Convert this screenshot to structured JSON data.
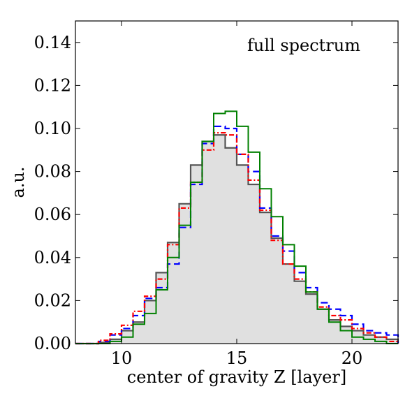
{
  "chart_data": {
    "type": "histogram",
    "title": "",
    "annotation": "full spectrum",
    "xlabel": "center of gravity Z [layer]",
    "ylabel": "a.u.",
    "xlim": [
      8,
      22
    ],
    "ylim": [
      0,
      0.15
    ],
    "xticks": [
      10,
      15,
      20
    ],
    "xtick_labels": [
      "10",
      "15",
      "20"
    ],
    "yticks": [
      0.0,
      0.02,
      0.04,
      0.06,
      0.08,
      0.1,
      0.12,
      0.14
    ],
    "ytick_labels": [
      "0.00",
      "0.02",
      "0.04",
      "0.06",
      "0.08",
      "0.10",
      "0.12",
      "0.14"
    ],
    "bin_edges": [
      8.0,
      8.5,
      9.0,
      9.5,
      10.0,
      10.5,
      11.0,
      11.5,
      12.0,
      12.5,
      13.0,
      13.5,
      14.0,
      14.5,
      15.0,
      15.5,
      16.0,
      16.5,
      17.0,
      17.5,
      18.0,
      18.5,
      19.0,
      19.5,
      20.0,
      20.5,
      21.0,
      21.5,
      22.0
    ],
    "series": [
      {
        "name": "reference (filled gray)",
        "color": "#555555",
        "fill": "#e0e0e0",
        "style": "solid",
        "values": [
          0.0,
          0.0,
          0.0005,
          0.002,
          0.006,
          0.01,
          0.02,
          0.033,
          0.047,
          0.065,
          0.083,
          0.094,
          0.097,
          0.091,
          0.083,
          0.074,
          0.061,
          0.049,
          0.037,
          0.029,
          0.023,
          0.016,
          0.011,
          0.008,
          0.006,
          0.004,
          0.003,
          0.002
        ]
      },
      {
        "name": "blue dashed",
        "color": "#0000ff",
        "style": "dashed",
        "values": [
          0.0,
          0.0,
          0.001,
          0.004,
          0.007,
          0.013,
          0.021,
          0.026,
          0.037,
          0.054,
          0.074,
          0.093,
          0.101,
          0.1,
          0.088,
          0.08,
          0.063,
          0.05,
          0.043,
          0.033,
          0.026,
          0.019,
          0.016,
          0.013,
          0.009,
          0.006,
          0.005,
          0.004
        ]
      },
      {
        "name": "red dash-dot",
        "color": "#ff0000",
        "style": "dashdot",
        "values": [
          0.0,
          0.0,
          0.0015,
          0.0045,
          0.0085,
          0.015,
          0.022,
          0.03,
          0.046,
          0.063,
          0.075,
          0.09,
          0.098,
          0.097,
          0.088,
          0.076,
          0.062,
          0.048,
          0.037,
          0.03,
          0.024,
          0.017,
          0.013,
          0.011,
          0.007,
          0.005,
          0.003,
          0.001
        ]
      },
      {
        "name": "green solid",
        "color": "#008000",
        "style": "solid",
        "values": [
          0.0,
          0.0,
          0.0,
          0.001,
          0.003,
          0.009,
          0.014,
          0.025,
          0.04,
          0.055,
          0.075,
          0.094,
          0.107,
          0.108,
          0.101,
          0.089,
          0.072,
          0.059,
          0.046,
          0.036,
          0.024,
          0.016,
          0.01,
          0.006,
          0.003,
          0.002,
          0.001,
          0.0
        ]
      }
    ]
  }
}
